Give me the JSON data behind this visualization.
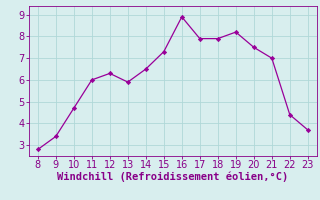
{
  "x": [
    8,
    9,
    10,
    11,
    12,
    13,
    14,
    15,
    16,
    17,
    18,
    19,
    20,
    21,
    22,
    23
  ],
  "y": [
    2.8,
    3.4,
    4.7,
    6.0,
    6.3,
    5.9,
    6.5,
    7.3,
    8.9,
    7.9,
    7.9,
    8.2,
    7.5,
    7.0,
    4.4,
    3.7
  ],
  "line_color": "#990099",
  "marker": "D",
  "marker_size": 2.2,
  "bg_color": "#d8eeee",
  "grid_color": "#b0d8d8",
  "xlabel": "Windchill (Refroidissement éolien,°C)",
  "xlabel_color": "#880088",
  "xlabel_fontsize": 7.5,
  "ylabel_ticks": [
    3,
    4,
    5,
    6,
    7,
    8,
    9
  ],
  "xticks": [
    8,
    9,
    10,
    11,
    12,
    13,
    14,
    15,
    16,
    17,
    18,
    19,
    20,
    21,
    22,
    23
  ],
  "xlim": [
    7.5,
    23.5
  ],
  "ylim": [
    2.5,
    9.4
  ],
  "tick_color": "#880088",
  "tick_fontsize": 7.0
}
